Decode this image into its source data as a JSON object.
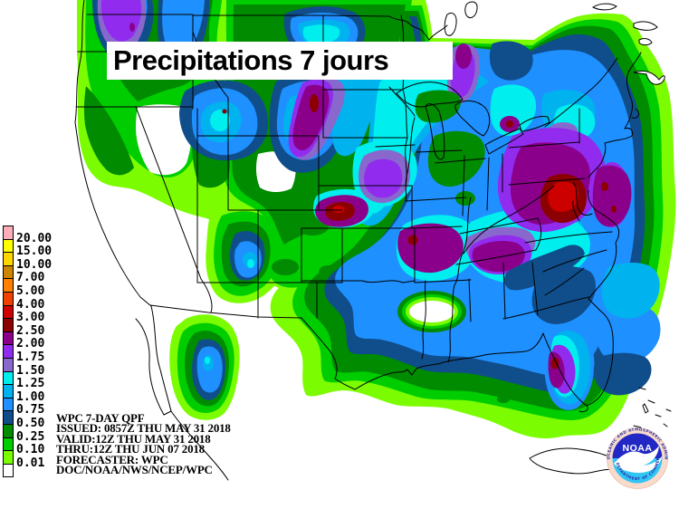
{
  "title": {
    "text": "Precipitations 7 jours"
  },
  "legend": {
    "values": [
      "20.00",
      "15.00",
      "10.00",
      "7.00",
      "5.00",
      "4.00",
      "3.00",
      "2.50",
      "2.00",
      "1.75",
      "1.50",
      "1.25",
      "1.00",
      "0.75",
      "0.50",
      "0.25",
      "0.10",
      "0.01"
    ],
    "colors_top_to_bottom": [
      "#FFAEB9",
      "#FFFF00",
      "#FFD700",
      "#CD8500",
      "#FF7F00",
      "#EE4000",
      "#CD0000",
      "#8B0000",
      "#8B008B",
      "#912CEE",
      "#8968CD",
      "#00EEEE",
      "#00B2EE",
      "#1E90FF",
      "#104E8B",
      "#008B00",
      "#00CD00",
      "#7CFC00",
      "#FFFFFF"
    ]
  },
  "info_block": {
    "lines": [
      "WPC 7-DAY QPF",
      "ISSUED: 0857Z THU MAY 31 2018",
      "VALID:12Z THU MAY 31 2018",
      "THRU:12Z THU JUN 07 2018",
      "FORECASTER: WPC",
      "DOC/NOAA/NWS/NCEP/WPC"
    ]
  },
  "noaa_logo": {
    "acronym": "NOAA",
    "ring_text_top": "NATIONAL OCEANIC AND ATMOSPHERIC ADMINISTRATION",
    "ring_text_bottom": "U.S. DEPARTMENT OF COMMERCE",
    "colors": {
      "ring": "#F9DACB",
      "top_half": "#2128C4",
      "bottom_half": "#33C6F4",
      "bird": "#FFFFFF"
    }
  }
}
